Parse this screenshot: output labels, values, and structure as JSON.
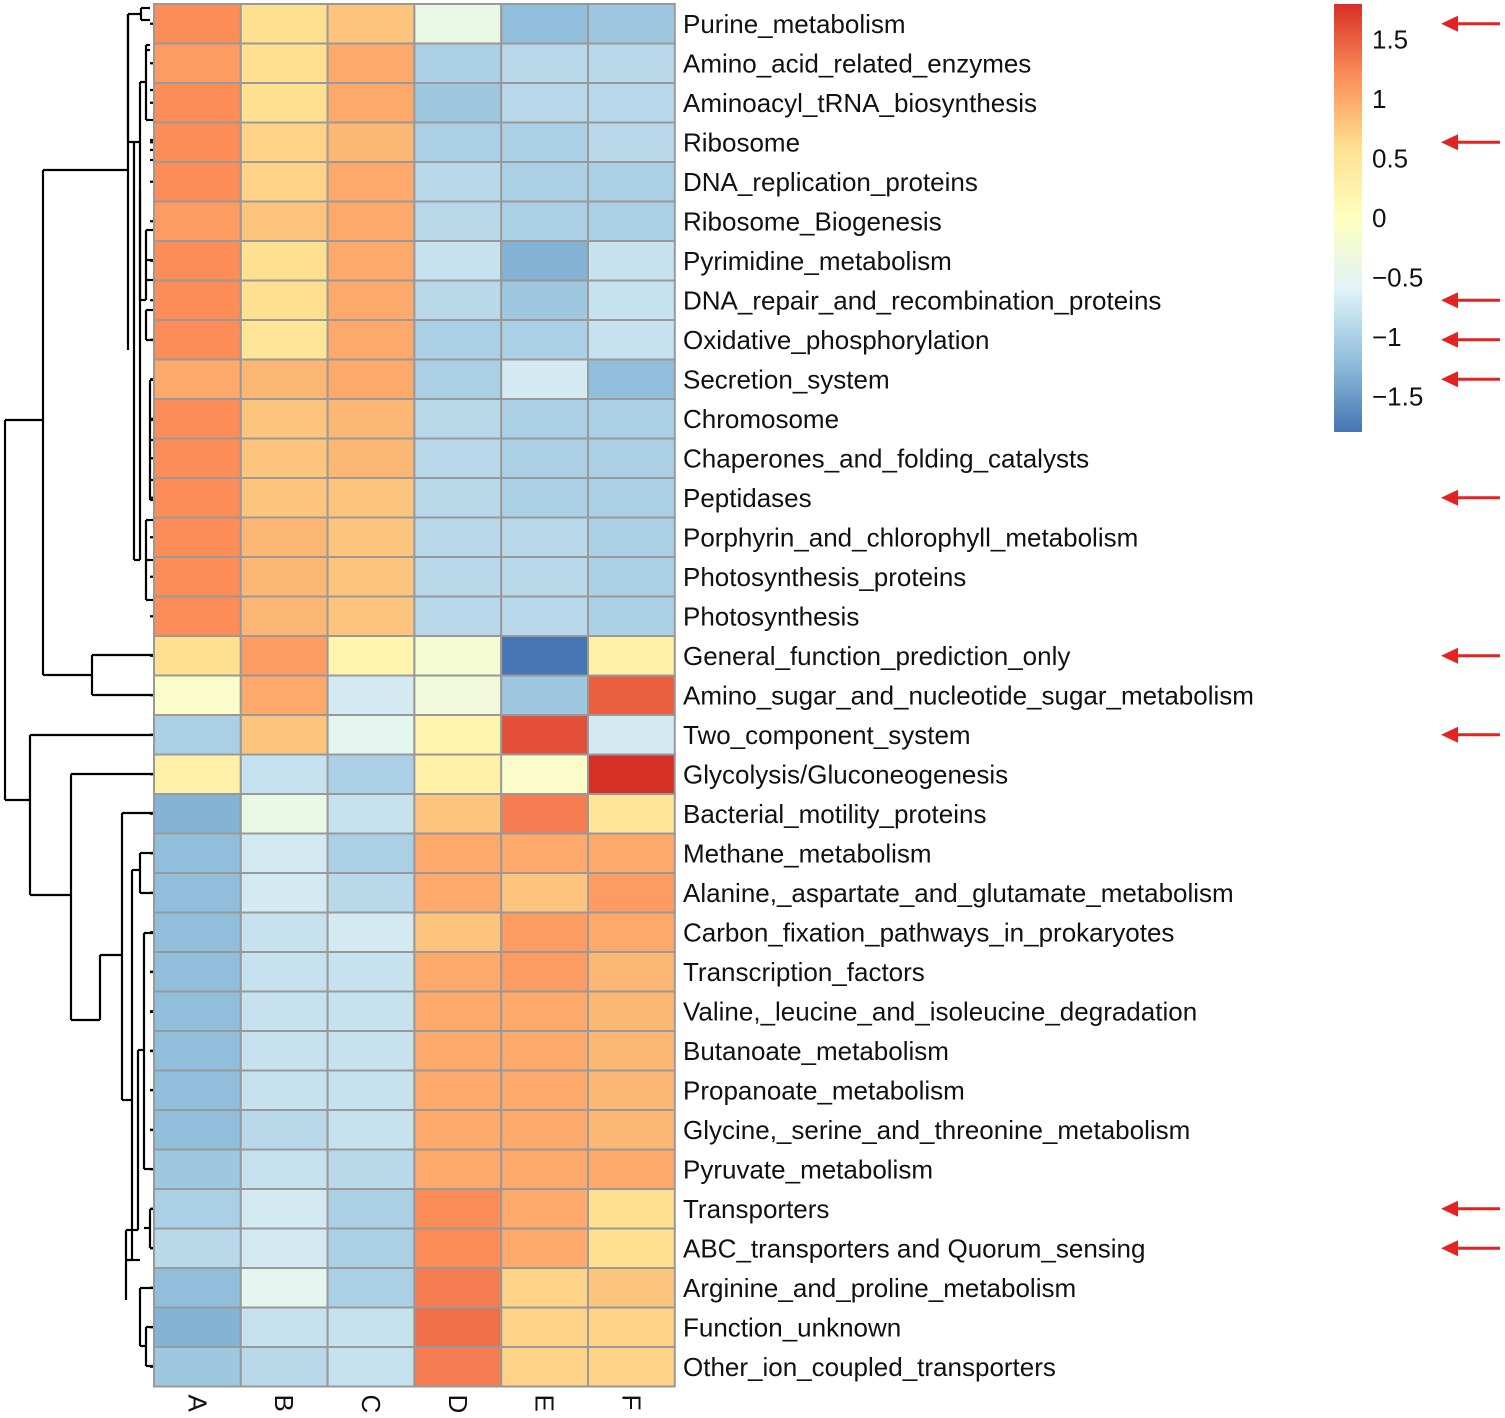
{
  "chart_data": {
    "type": "heatmap",
    "columns": [
      "A",
      "B",
      "C",
      "D",
      "E",
      "F"
    ],
    "rows": [
      {
        "label": "Purine_metabolism",
        "values": [
          1.2,
          0.6,
          0.8,
          -0.4,
          -1.2,
          -1.1
        ],
        "arrow": true
      },
      {
        "label": "Amino_acid_related_enzymes",
        "values": [
          1.1,
          0.6,
          1.0,
          -1.0,
          -0.9,
          -0.9
        ],
        "arrow": false
      },
      {
        "label": "Aminoacyl_tRNA_biosynthesis",
        "values": [
          1.2,
          0.6,
          1.0,
          -1.1,
          -0.9,
          -0.9
        ],
        "arrow": false
      },
      {
        "label": "Ribosome",
        "values": [
          1.2,
          0.7,
          0.9,
          -1.0,
          -1.0,
          -0.9
        ],
        "arrow": true
      },
      {
        "label": "DNA_replication_proteins",
        "values": [
          1.2,
          0.7,
          1.0,
          -0.9,
          -1.0,
          -1.0
        ],
        "arrow": false
      },
      {
        "label": "Ribosome_Biogenesis",
        "values": [
          1.1,
          0.8,
          1.0,
          -0.9,
          -1.0,
          -1.0
        ],
        "arrow": false
      },
      {
        "label": "Pyrimidine_metabolism",
        "values": [
          1.2,
          0.6,
          1.0,
          -0.8,
          -1.3,
          -0.8
        ],
        "arrow": false
      },
      {
        "label": "DNA_repair_and_recombination_proteins",
        "values": [
          1.2,
          0.6,
          1.0,
          -0.9,
          -1.1,
          -0.8
        ],
        "arrow": true
      },
      {
        "label": "Oxidative_phosphorylation",
        "values": [
          1.2,
          0.5,
          1.0,
          -1.0,
          -1.0,
          -0.8
        ],
        "arrow": true
      },
      {
        "label": "Secretion_system",
        "values": [
          1.0,
          0.9,
          1.0,
          -1.0,
          -0.7,
          -1.2
        ],
        "arrow": true
      },
      {
        "label": "Chromosome",
        "values": [
          1.2,
          0.8,
          0.9,
          -0.9,
          -1.0,
          -1.0
        ],
        "arrow": false
      },
      {
        "label": "Chaperones_and_folding_catalysts",
        "values": [
          1.2,
          0.8,
          0.9,
          -0.9,
          -1.0,
          -1.0
        ],
        "arrow": false
      },
      {
        "label": "Peptidases",
        "values": [
          1.2,
          0.8,
          0.8,
          -0.9,
          -1.0,
          -1.0
        ],
        "arrow": true
      },
      {
        "label": "Porphyrin_and_chlorophyll_metabolism",
        "values": [
          1.2,
          0.9,
          0.8,
          -0.9,
          -0.9,
          -1.0
        ],
        "arrow": false
      },
      {
        "label": "Photosynthesis_proteins",
        "values": [
          1.2,
          0.9,
          0.8,
          -0.9,
          -0.9,
          -1.0
        ],
        "arrow": false
      },
      {
        "label": "Photosynthesis",
        "values": [
          1.2,
          0.9,
          0.8,
          -0.9,
          -0.9,
          -1.0
        ],
        "arrow": false
      },
      {
        "label": "General_function_prediction_only",
        "values": [
          0.6,
          1.1,
          0.2,
          -0.2,
          -1.8,
          0.3
        ],
        "arrow": true
      },
      {
        "label": "Amino_sugar_and_nucleotide_sugar_metabolism",
        "values": [
          -0.1,
          1.0,
          -0.7,
          -0.3,
          -1.1,
          1.5
        ],
        "arrow": false
      },
      {
        "label": "Two_component_system",
        "values": [
          -1.0,
          0.8,
          -0.5,
          0.2,
          1.6,
          -0.7
        ],
        "arrow": true
      },
      {
        "label": "Glycolysis/Gluconeogenesis",
        "values": [
          0.3,
          -0.8,
          -1.0,
          0.3,
          -0.1,
          1.8
        ],
        "arrow": false
      },
      {
        "label": "Bacterial_motility_proteins",
        "values": [
          -1.3,
          -0.4,
          -0.8,
          0.8,
          1.3,
          0.5
        ],
        "arrow": false
      },
      {
        "label": "Methane_metabolism",
        "values": [
          -1.2,
          -0.7,
          -1.0,
          1.0,
          1.0,
          1.0
        ],
        "arrow": false
      },
      {
        "label": "Alanine,_aspartate_and_glutamate_metabolism",
        "values": [
          -1.2,
          -0.7,
          -0.9,
          1.0,
          0.8,
          1.1
        ],
        "arrow": false
      },
      {
        "label": "Carbon_fixation_pathways_in_prokaryotes",
        "values": [
          -1.2,
          -0.8,
          -0.7,
          0.8,
          1.1,
          1.0
        ],
        "arrow": false
      },
      {
        "label": "Transcription_factors",
        "values": [
          -1.2,
          -0.8,
          -0.8,
          1.0,
          1.1,
          0.9
        ],
        "arrow": false
      },
      {
        "label": "Valine,_leucine_and_isoleucine_degradation",
        "values": [
          -1.2,
          -0.8,
          -0.8,
          1.0,
          1.0,
          0.9
        ],
        "arrow": false
      },
      {
        "label": "Butanoate_metabolism",
        "values": [
          -1.2,
          -0.8,
          -0.8,
          1.0,
          1.0,
          0.9
        ],
        "arrow": false
      },
      {
        "label": "Propanoate_metabolism",
        "values": [
          -1.2,
          -0.8,
          -0.8,
          1.0,
          1.0,
          0.9
        ],
        "arrow": false
      },
      {
        "label": "Glycine,_serine_and_threonine_metabolism",
        "values": [
          -1.2,
          -0.9,
          -0.8,
          1.0,
          1.0,
          0.9
        ],
        "arrow": false
      },
      {
        "label": "Pyruvate_metabolism",
        "values": [
          -1.1,
          -0.8,
          -0.9,
          1.0,
          1.0,
          1.0
        ],
        "arrow": false
      },
      {
        "label": "Transporters",
        "values": [
          -1.0,
          -0.7,
          -1.0,
          1.2,
          1.0,
          0.6
        ],
        "arrow": true
      },
      {
        "label": "ABC_transporters",
        "label_suffix": " and Quorum_sensing",
        "values": [
          -0.9,
          -0.7,
          -1.0,
          1.2,
          1.0,
          0.6
        ],
        "arrow": true
      },
      {
        "label": "Arginine_and_proline_metabolism",
        "values": [
          -1.2,
          -0.5,
          -1.0,
          1.3,
          0.7,
          0.8
        ],
        "arrow": false
      },
      {
        "label": "Function_unknown",
        "values": [
          -1.3,
          -0.8,
          -0.8,
          1.4,
          0.7,
          0.7
        ],
        "arrow": false
      },
      {
        "label": "Other_ion_coupled_transporters",
        "values": [
          -1.1,
          -0.9,
          -0.8,
          1.3,
          0.7,
          0.7
        ],
        "arrow": false
      }
    ],
    "legend": {
      "min": -1.8,
      "max": 1.8,
      "ticks": [
        1.5,
        1,
        0.5,
        0,
        -0.5,
        -1,
        -1.5
      ],
      "tick_labels": [
        "1.5",
        "1",
        "0.5",
        "0",
        "−0.5",
        "−1",
        "−1.5"
      ],
      "colors": [
        "#4575b4",
        "#91bfdb",
        "#e0f3f8",
        "#ffffbf",
        "#fee090",
        "#fc8d59",
        "#d73027"
      ]
    },
    "cell_border_color": "#999999",
    "arrow_color": "#e32321",
    "dendrogram": "hierarchical clustering of rows (left)"
  }
}
